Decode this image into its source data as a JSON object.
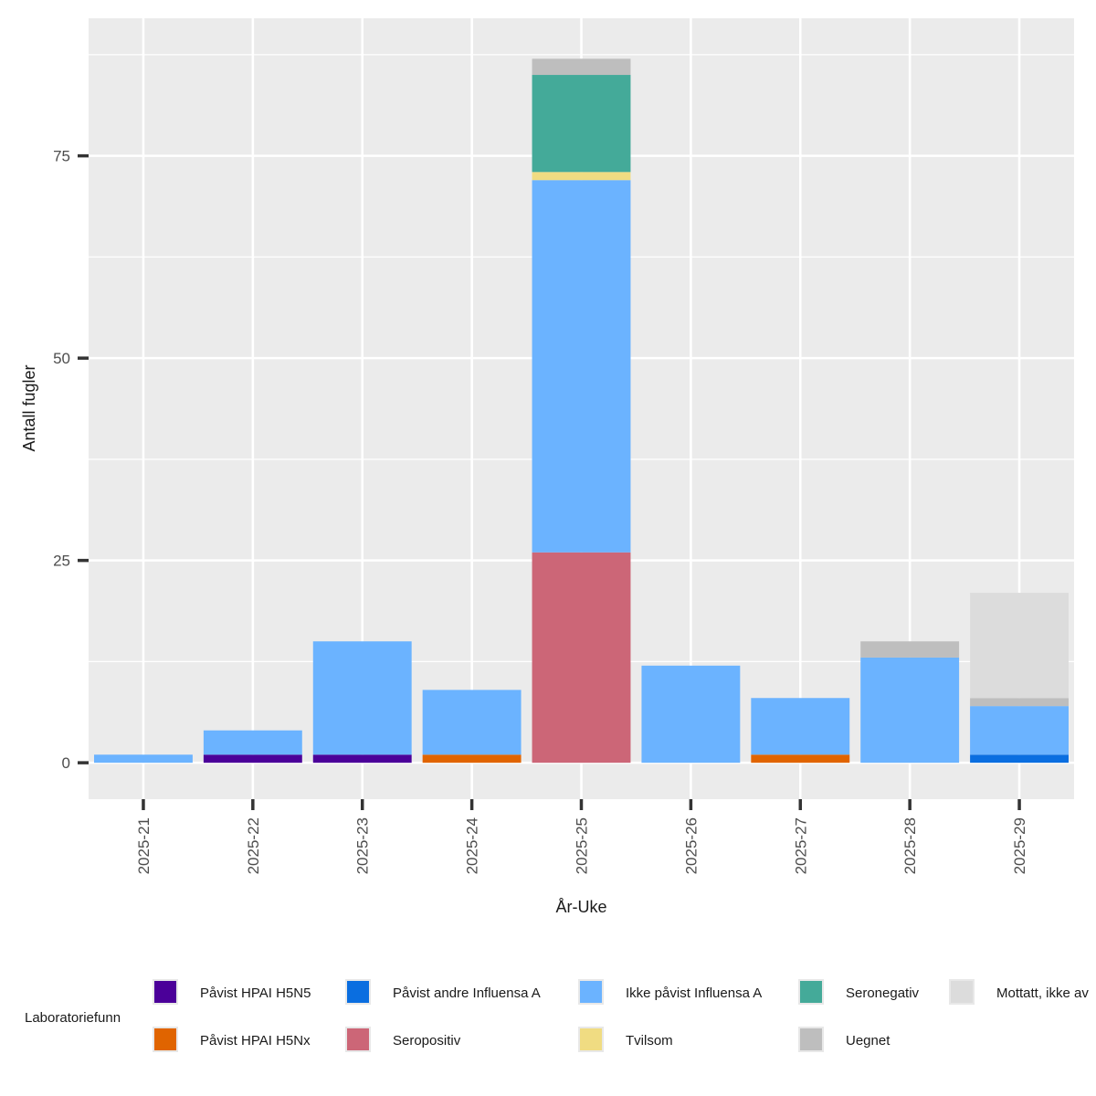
{
  "chart_data": {
    "type": "bar",
    "stacked": true,
    "xlabel": "År-Uke",
    "ylabel": "Antall fugler",
    "ylim": [
      -4.5,
      92
    ],
    "yticks": [
      0,
      25,
      50,
      75
    ],
    "grid": true,
    "legend_position": "bottom",
    "legend_title": "Laboratoriefunn",
    "categories": [
      "2025-21",
      "2025-22",
      "2025-23",
      "2025-24",
      "2025-25",
      "2025-26",
      "2025-27",
      "2025-28",
      "2025-29"
    ],
    "series": [
      {
        "name": "Påvist HPAI H5N5",
        "color": "#4B0099",
        "values": [
          0,
          1,
          1,
          0,
          0,
          0,
          0,
          0,
          0
        ]
      },
      {
        "name": "Påvist HPAI H5Nx",
        "color": "#E06400",
        "values": [
          0,
          0,
          0,
          1,
          0,
          0,
          1,
          0,
          0
        ]
      },
      {
        "name": "Påvist andre Influensa A",
        "color": "#0A6EE0",
        "values": [
          0,
          0,
          0,
          0,
          0,
          0,
          0,
          0,
          1
        ]
      },
      {
        "name": "Seropositiv",
        "color": "#CC6677",
        "values": [
          0,
          0,
          0,
          0,
          26,
          0,
          0,
          0,
          0
        ]
      },
      {
        "name": "Ikke påvist Influensa A",
        "color": "#6BB3FF",
        "values": [
          1,
          3,
          14,
          8,
          46,
          12,
          7,
          13,
          6
        ]
      },
      {
        "name": "Tvilsom",
        "color": "#F0DC82",
        "values": [
          0,
          0,
          0,
          0,
          1,
          0,
          0,
          0,
          0
        ]
      },
      {
        "name": "Seronegativ",
        "color": "#44AA99",
        "values": [
          0,
          0,
          0,
          0,
          12,
          0,
          0,
          0,
          0
        ]
      },
      {
        "name": "Uegnet",
        "color": "#BEBEBE",
        "values": [
          0,
          0,
          0,
          0,
          2,
          0,
          0,
          2,
          1
        ]
      },
      {
        "name": "Mottatt, ikke av",
        "color": "#DCDCDC",
        "values": [
          0,
          0,
          0,
          0,
          0,
          0,
          0,
          0,
          13
        ]
      }
    ],
    "legend_order": [
      [
        "Påvist HPAI H5N5",
        "Påvist andre Influensa A",
        "Ikke påvist Influensa A",
        "Seronegativ",
        "Mottatt, ikke av"
      ],
      [
        "Påvist HPAI H5Nx",
        "Seropositiv",
        "Tvilsom",
        "Uegnet"
      ]
    ]
  }
}
